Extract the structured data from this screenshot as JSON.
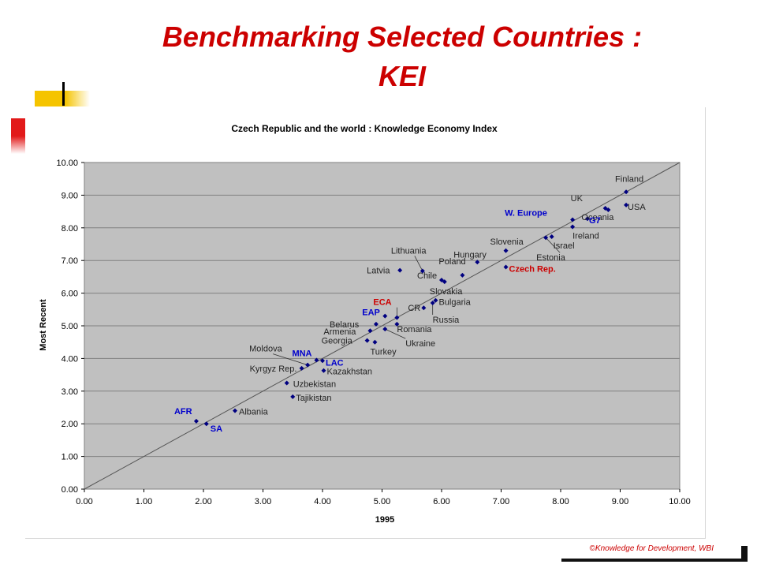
{
  "slide": {
    "title_line1": "Benchmarking Selected Countries :",
    "title_line2": "KEI",
    "footer": "©Knowledge for Development, WBI"
  },
  "colors": {
    "title": "#cc0000",
    "plot_bg": "#c0c0c0",
    "point": "#000080",
    "region_label": "#0000cc",
    "highlight_label": "#cc0000"
  },
  "chart_data": {
    "type": "scatter",
    "title": "Czech Republic and the world : Knowledge Economy Index",
    "xlabel": "1995",
    "ylabel": "Most Recent",
    "xlim": [
      0,
      10
    ],
    "ylim": [
      0,
      10
    ],
    "xticks": [
      "0.00",
      "1.00",
      "2.00",
      "3.00",
      "4.00",
      "5.00",
      "6.00",
      "7.00",
      "8.00",
      "9.00",
      "10.00"
    ],
    "yticks": [
      "0.00",
      "1.00",
      "2.00",
      "3.00",
      "4.00",
      "5.00",
      "6.00",
      "7.00",
      "8.00",
      "9.00",
      "10.00"
    ],
    "grid": "horizontal",
    "reference_line": "y = x",
    "points": [
      {
        "label": "Finland",
        "x": 9.1,
        "y": 9.1,
        "style": "country"
      },
      {
        "label": "UK",
        "x": 8.75,
        "y": 8.6,
        "style": "country"
      },
      {
        "label": "USA",
        "x": 9.1,
        "y": 8.7,
        "style": "country"
      },
      {
        "label": "Oceania",
        "x": 8.8,
        "y": 8.55,
        "style": "country"
      },
      {
        "label": "G7",
        "x": 8.45,
        "y": 8.28,
        "style": "region"
      },
      {
        "label": "W. Europe",
        "x": 8.2,
        "y": 8.25,
        "style": "region"
      },
      {
        "label": "Ireland",
        "x": 8.2,
        "y": 8.03,
        "style": "country"
      },
      {
        "label": "Israel",
        "x": 7.85,
        "y": 7.73,
        "style": "country"
      },
      {
        "label": "Estonia",
        "x": 7.75,
        "y": 7.7,
        "style": "country"
      },
      {
        "label": "Slovenia",
        "x": 7.08,
        "y": 7.3,
        "style": "country"
      },
      {
        "label": "Hungary",
        "x": 6.6,
        "y": 6.95,
        "style": "country"
      },
      {
        "label": "Czech Rep.",
        "x": 7.08,
        "y": 6.8,
        "style": "highlight"
      },
      {
        "label": "Lithuania",
        "x": 5.68,
        "y": 6.68,
        "style": "country"
      },
      {
        "label": "Latvia",
        "x": 5.3,
        "y": 6.7,
        "style": "country"
      },
      {
        "label": "Poland",
        "x": 6.35,
        "y": 6.55,
        "style": "country"
      },
      {
        "label": "Chile",
        "x": 6.0,
        "y": 6.4,
        "style": "country"
      },
      {
        "label": "Slovakia",
        "x": 6.05,
        "y": 6.35,
        "style": "country"
      },
      {
        "label": "Bulgaria",
        "x": 5.9,
        "y": 5.78,
        "style": "country"
      },
      {
        "label": "CR",
        "x": 5.7,
        "y": 5.55,
        "style": "country"
      },
      {
        "label": "Russia",
        "x": 5.85,
        "y": 5.7,
        "style": "country"
      },
      {
        "label": "ECA",
        "x": 5.25,
        "y": 5.25,
        "style": "highlight"
      },
      {
        "label": "EAP",
        "x": 5.05,
        "y": 5.3,
        "style": "region"
      },
      {
        "label": "Belarus",
        "x": 4.9,
        "y": 5.05,
        "style": "country"
      },
      {
        "label": "Romania",
        "x": 5.25,
        "y": 5.05,
        "style": "country"
      },
      {
        "label": "Armenia",
        "x": 4.8,
        "y": 4.85,
        "style": "country"
      },
      {
        "label": "Ukraine",
        "x": 5.05,
        "y": 4.9,
        "style": "country"
      },
      {
        "label": "Georgia",
        "x": 4.75,
        "y": 4.55,
        "style": "country"
      },
      {
        "label": "Turkey",
        "x": 4.88,
        "y": 4.5,
        "style": "country"
      },
      {
        "label": "Moldova",
        "x": 3.75,
        "y": 3.8,
        "style": "country"
      },
      {
        "label": "MNA",
        "x": 3.9,
        "y": 3.95,
        "style": "region"
      },
      {
        "label": "LAC",
        "x": 4.0,
        "y": 3.93,
        "style": "region"
      },
      {
        "label": "Kyrgyz Rep.",
        "x": 3.65,
        "y": 3.7,
        "style": "country"
      },
      {
        "label": "Kazakhstan",
        "x": 4.02,
        "y": 3.63,
        "style": "country"
      },
      {
        "label": "Uzbekistan",
        "x": 3.4,
        "y": 3.25,
        "style": "country"
      },
      {
        "label": "Tajikistan",
        "x": 3.5,
        "y": 2.83,
        "style": "country"
      },
      {
        "label": "Albania",
        "x": 2.53,
        "y": 2.4,
        "style": "country"
      },
      {
        "label": "AFR",
        "x": 1.88,
        "y": 2.08,
        "style": "region"
      },
      {
        "label": "SA",
        "x": 2.05,
        "y": 2.0,
        "style": "region"
      }
    ]
  }
}
